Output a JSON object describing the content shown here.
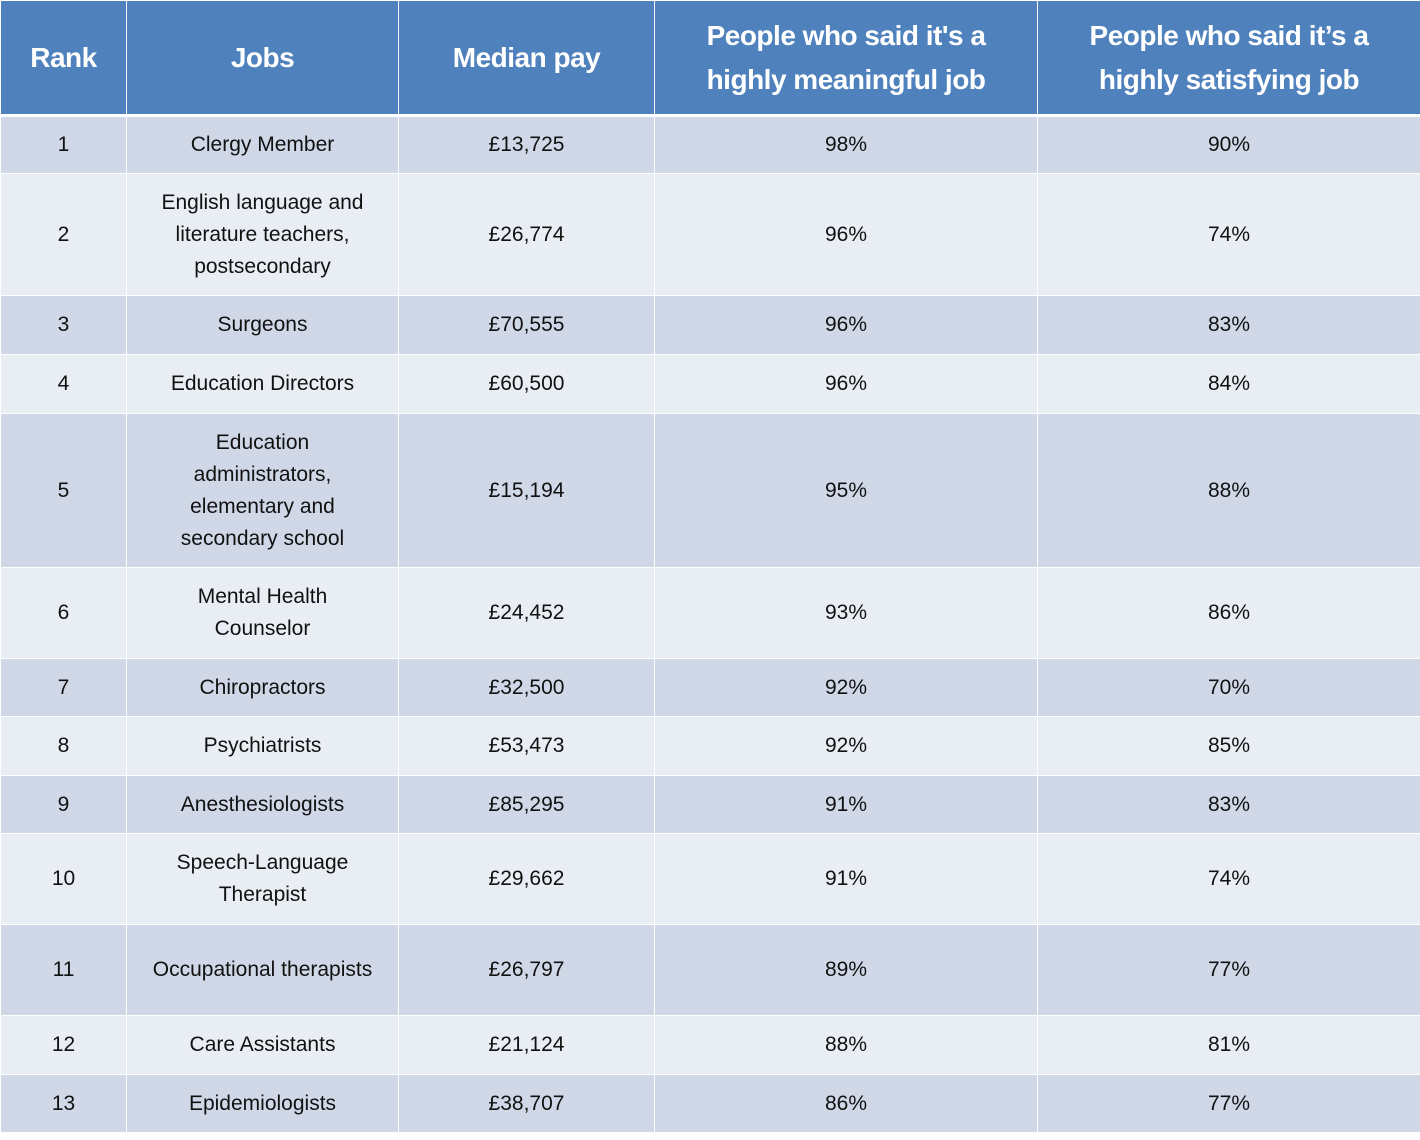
{
  "headers": [
    "Rank",
    "Jobs",
    "Median pay",
    "People who said it's a highly meaningful job",
    "People who said it’s a highly satisfying job"
  ],
  "rows": [
    [
      "1",
      "Clergy Member",
      "£13,725",
      "98%",
      "90%"
    ],
    [
      "2",
      "English language and literature teachers, postsecondary",
      "£26,774",
      "96%",
      "74%"
    ],
    [
      "3",
      "Surgeons",
      "£70,555",
      "96%",
      "83%"
    ],
    [
      "4",
      "Education Directors",
      "£60,500",
      "96%",
      "84%"
    ],
    [
      "5",
      "Education administrators, elementary and secondary school",
      "£15,194",
      "95%",
      "88%"
    ],
    [
      "6",
      "Mental Health Counselor",
      "£24,452",
      "93%",
      "86%"
    ],
    [
      "7",
      "Chiropractors",
      "£32,500",
      "92%",
      "70%"
    ],
    [
      "8",
      "Psychiatrists",
      "£53,473",
      "92%",
      "85%"
    ],
    [
      "9",
      "Anesthesiologists",
      "£85,295",
      "91%",
      "83%"
    ],
    [
      "10",
      "Speech-Language Therapist",
      "£29,662",
      "91%",
      "74%"
    ],
    [
      "11",
      "Occupational therapists",
      "£26,797",
      "89%",
      "77%"
    ],
    [
      "12",
      "Care Assistants",
      "£21,124",
      "88%",
      "81%"
    ],
    [
      "13",
      "Epidemiologists",
      "£38,707",
      "86%",
      "77%"
    ]
  ],
  "colors": {
    "header": "#4f81bd",
    "row_odd": "#d0d8e8",
    "row_even": "#e9edf4"
  }
}
